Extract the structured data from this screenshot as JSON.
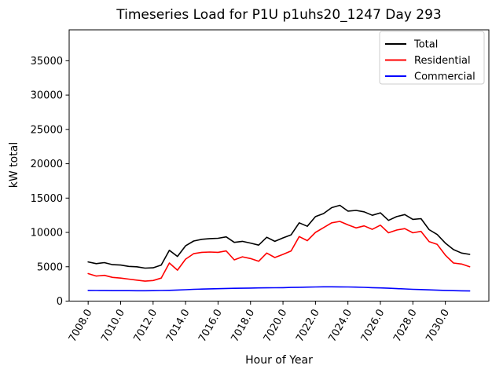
{
  "chart_data": {
    "type": "line",
    "title": "Timeseries Load for P1U p1uhs20_1247  Day 293",
    "xlabel": "Hour of Year",
    "ylabel": "kW total",
    "xlim": [
      7006.83,
      7032.68
    ],
    "ylim": [
      0,
      39500
    ],
    "grid": false,
    "legend_position": "upper right",
    "xticks": [
      7008,
      7010,
      7012,
      7014,
      7016,
      7018,
      7020,
      7022,
      7024,
      7026,
      7028,
      7030
    ],
    "xtick_labels": [
      "7008.0",
      "7010.0",
      "7012.0",
      "7014.0",
      "7016.0",
      "7018.0",
      "7020.0",
      "7022.0",
      "7024.0",
      "7026.0",
      "7028.0",
      "7030.0"
    ],
    "yticks": [
      0,
      5000,
      10000,
      15000,
      20000,
      25000,
      30000,
      35000
    ],
    "ytick_labels": [
      "0",
      "5000",
      "10000",
      "15000",
      "20000",
      "25000",
      "30000",
      "35000"
    ],
    "x": [
      7008.0,
      7008.5,
      7009.0,
      7009.5,
      7010.0,
      7010.5,
      7011.0,
      7011.5,
      7012.0,
      7012.5,
      7013.0,
      7013.5,
      7014.0,
      7014.5,
      7015.0,
      7015.5,
      7016.0,
      7016.5,
      7017.0,
      7017.5,
      7018.0,
      7018.5,
      7019.0,
      7019.5,
      7020.0,
      7020.5,
      7021.0,
      7021.5,
      7022.0,
      7022.5,
      7023.0,
      7023.5,
      7024.0,
      7024.5,
      7025.0,
      7025.5,
      7026.0,
      7026.5,
      7027.0,
      7027.5,
      7028.0,
      7028.5,
      7029.0,
      7029.5,
      7030.0,
      7030.5,
      7031.0,
      7031.5
    ],
    "series": [
      {
        "name": "Total",
        "color": "#000000",
        "values": [
          5700,
          5450,
          5600,
          5300,
          5250,
          5050,
          5000,
          4800,
          4850,
          5250,
          7400,
          6500,
          8050,
          8750,
          9000,
          9100,
          9150,
          9350,
          8550,
          8700,
          8450,
          8150,
          9300,
          8700,
          9200,
          9650,
          11400,
          10900,
          12300,
          12750,
          13600,
          13950,
          13100,
          13200,
          13000,
          12500,
          12850,
          11750,
          12300,
          12600,
          11900,
          12000,
          10400,
          9700,
          8450,
          7500,
          7000,
          6800
        ]
      },
      {
        "name": "Residential",
        "color": "#ff0000",
        "values": [
          4000,
          3650,
          3750,
          3450,
          3350,
          3200,
          3050,
          2900,
          3000,
          3350,
          5550,
          4500,
          6100,
          6900,
          7100,
          7150,
          7100,
          7300,
          6000,
          6450,
          6200,
          5800,
          7000,
          6350,
          6800,
          7300,
          9400,
          8800,
          10000,
          10700,
          11400,
          11600,
          11100,
          10650,
          10950,
          10450,
          11050,
          9950,
          10350,
          10550,
          9950,
          10150,
          8650,
          8250,
          6700,
          5550,
          5400,
          5000
        ]
      },
      {
        "name": "Commercial",
        "color": "#0000ff",
        "values": [
          1550,
          1540,
          1530,
          1525,
          1520,
          1515,
          1510,
          1510,
          1520,
          1540,
          1570,
          1610,
          1660,
          1710,
          1750,
          1780,
          1810,
          1840,
          1860,
          1880,
          1900,
          1915,
          1930,
          1945,
          1960,
          1985,
          2010,
          2040,
          2060,
          2080,
          2085,
          2075,
          2055,
          2030,
          2000,
          1960,
          1915,
          1870,
          1820,
          1770,
          1720,
          1675,
          1630,
          1590,
          1555,
          1525,
          1500,
          1480
        ]
      }
    ]
  }
}
